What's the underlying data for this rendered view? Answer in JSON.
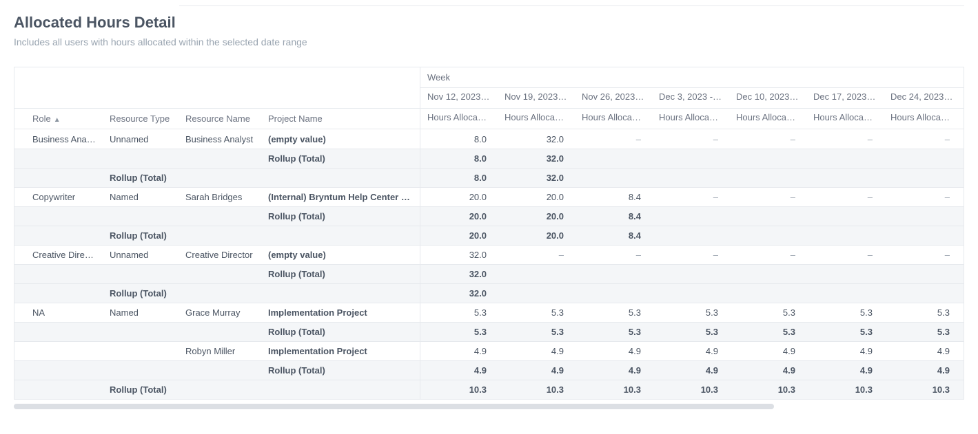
{
  "title": "Allocated Hours Detail",
  "subtitle": "Includes all users with hours allocated within the selected date range",
  "columns": {
    "role": "Role",
    "resource_type": "Resource Type",
    "resource_name": "Resource Name",
    "project_name": "Project Name",
    "week": "Week",
    "hours_allocated": "Hours Allocated"
  },
  "sort": {
    "column": "Role",
    "direction": "asc",
    "indicator": "▲"
  },
  "weeks": [
    "Nov 12, 2023…",
    "Nov 19, 2023…",
    "Nov 26, 2023…",
    "Dec 3, 2023 -…",
    "Dec 10, 2023 …",
    "Dec 17, 2023 …",
    "Dec 24, 2023 …"
  ],
  "empty_value_label": "(empty value)",
  "rollup_label": "Rollup (Total)",
  "dash": "–",
  "groups": [
    {
      "role": "Business Analyst",
      "resource_type": "Unnamed",
      "resources": [
        {
          "resource_name": "Business Analyst",
          "projects": [
            {
              "project_name": "(empty value)",
              "values": [
                "8.0",
                "32.0",
                "–",
                "–",
                "–",
                "–",
                "–"
              ]
            }
          ],
          "resource_rollup": [
            "8.0",
            "32.0",
            "",
            "",
            "",
            "",
            ""
          ]
        }
      ],
      "group_rollup": [
        "8.0",
        "32.0",
        "",
        "",
        "",
        "",
        ""
      ]
    },
    {
      "role": "Copywriter",
      "resource_type": "Named",
      "resources": [
        {
          "resource_name": "Sarah Bridges",
          "projects": [
            {
              "project_name": "(Internal) Bryntum Help Center Rew…",
              "values": [
                "20.0",
                "20.0",
                "8.4",
                "–",
                "–",
                "–",
                "–"
              ]
            }
          ],
          "resource_rollup": [
            "20.0",
            "20.0",
            "8.4",
            "",
            "",
            "",
            ""
          ]
        }
      ],
      "group_rollup": [
        "20.0",
        "20.0",
        "8.4",
        "",
        "",
        "",
        ""
      ]
    },
    {
      "role": "Creative Director",
      "resource_type": "Unnamed",
      "resources": [
        {
          "resource_name": "Creative Director",
          "projects": [
            {
              "project_name": "(empty value)",
              "values": [
                "32.0",
                "–",
                "–",
                "–",
                "–",
                "–",
                "–"
              ]
            }
          ],
          "resource_rollup": [
            "32.0",
            "",
            "",
            "",
            "",
            "",
            ""
          ]
        }
      ],
      "group_rollup": [
        "32.0",
        "",
        "",
        "",
        "",
        "",
        ""
      ]
    },
    {
      "role": "NA",
      "resource_type": "Named",
      "resources": [
        {
          "resource_name": "Grace Murray",
          "projects": [
            {
              "project_name": "Implementation Project",
              "values": [
                "5.3",
                "5.3",
                "5.3",
                "5.3",
                "5.3",
                "5.3",
                "5.3"
              ]
            }
          ],
          "resource_rollup": [
            "5.3",
            "5.3",
            "5.3",
            "5.3",
            "5.3",
            "5.3",
            "5.3"
          ]
        },
        {
          "resource_name": "Robyn Miller",
          "projects": [
            {
              "project_name": "Implementation Project",
              "values": [
                "4.9",
                "4.9",
                "4.9",
                "4.9",
                "4.9",
                "4.9",
                "4.9"
              ]
            }
          ],
          "resource_rollup": [
            "4.9",
            "4.9",
            "4.9",
            "4.9",
            "4.9",
            "4.9",
            "4.9"
          ]
        }
      ],
      "group_rollup": [
        "10.3",
        "10.3",
        "10.3",
        "10.3",
        "10.3",
        "10.3",
        "10.3"
      ]
    }
  ],
  "colors": {
    "text": "#4b5563",
    "muted": "#99a4b0",
    "border": "#e6e9ed",
    "rollup_bg": "#f4f6f8",
    "scroll_thumb": "#dcdfe4"
  }
}
